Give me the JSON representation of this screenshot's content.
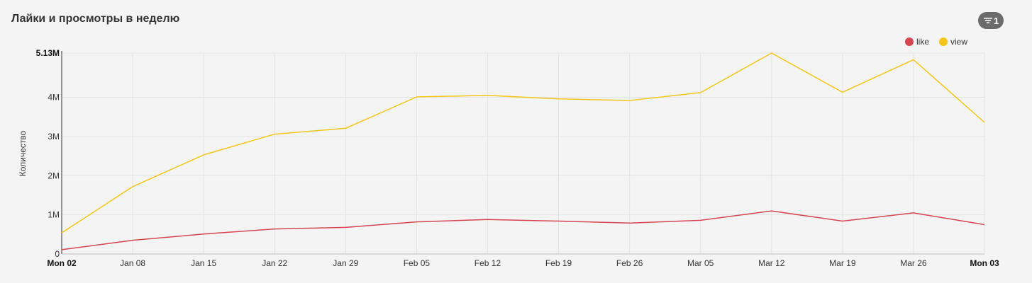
{
  "header": {
    "title": "Лайки и просмотры в неделю",
    "filter_count": "1"
  },
  "legend": [
    {
      "name": "like",
      "color": "#d64550"
    },
    {
      "name": "view",
      "color": "#f5c518"
    }
  ],
  "chart_data": {
    "type": "line",
    "ylabel": "Количество",
    "ylim": [
      0,
      5130000
    ],
    "yticks": [
      {
        "value": 0,
        "label": "0",
        "bold": false
      },
      {
        "value": 1000000,
        "label": "1M",
        "bold": false
      },
      {
        "value": 2000000,
        "label": "2M",
        "bold": false
      },
      {
        "value": 3000000,
        "label": "3M",
        "bold": false
      },
      {
        "value": 4000000,
        "label": "4M",
        "bold": false
      },
      {
        "value": 5130000,
        "label": "5.13M",
        "bold": true
      }
    ],
    "x": [
      "Mon 02",
      "Jan 08",
      "Jan 15",
      "Jan 22",
      "Jan 29",
      "Feb 05",
      "Feb 12",
      "Feb 19",
      "Feb 26",
      "Mar 05",
      "Mar 12",
      "Mar 19",
      "Mar 26",
      "Mon 03"
    ],
    "xlabels": [
      {
        "label": "Mon 02",
        "bold": true
      },
      {
        "label": "Jan 08",
        "bold": false
      },
      {
        "label": "Jan 15",
        "bold": false
      },
      {
        "label": "Jan 22",
        "bold": false
      },
      {
        "label": "Jan 29",
        "bold": false
      },
      {
        "label": "Feb 05",
        "bold": false
      },
      {
        "label": "Feb 12",
        "bold": false
      },
      {
        "label": "Feb 19",
        "bold": false
      },
      {
        "label": "Feb 26",
        "bold": false
      },
      {
        "label": "Mar 05",
        "bold": false
      },
      {
        "label": "Mar 12",
        "bold": false
      },
      {
        "label": "Mar 19",
        "bold": false
      },
      {
        "label": "Mar 26",
        "bold": false
      },
      {
        "label": "Mon 03",
        "bold": true
      }
    ],
    "series": [
      {
        "name": "view",
        "color": "#f5c518",
        "values": [
          540000,
          1720000,
          2530000,
          3060000,
          3210000,
          4010000,
          4050000,
          3960000,
          3920000,
          4120000,
          5130000,
          4130000,
          4960000,
          3360000
        ]
      },
      {
        "name": "like",
        "color": "#d64550",
        "values": [
          110000,
          350000,
          510000,
          640000,
          680000,
          820000,
          880000,
          840000,
          790000,
          860000,
          1100000,
          840000,
          1050000,
          750000
        ]
      }
    ],
    "grid": true
  }
}
